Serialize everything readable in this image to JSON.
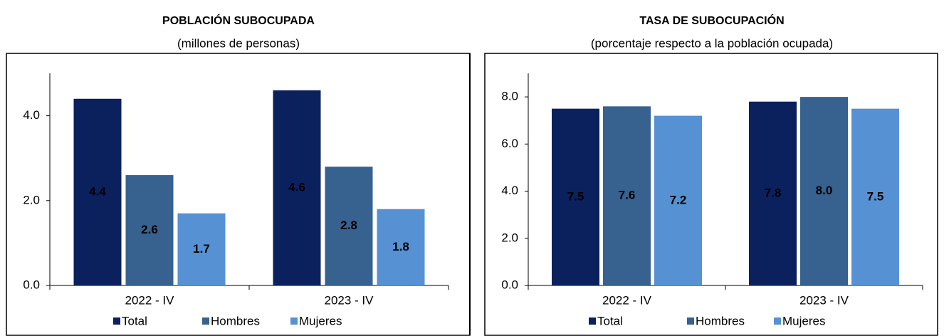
{
  "chart_data": [
    {
      "type": "bar",
      "title": "POBLACIÓN SUBOCUPADA",
      "subtitle": "(millones de personas)",
      "categories": [
        "2022 - IV",
        "2023 - IV"
      ],
      "series": [
        {
          "name": "Total",
          "color": "#0b215e",
          "values": [
            4.4,
            4.6
          ],
          "value_labels": [
            "4.4",
            "4.6"
          ]
        },
        {
          "name": "Hombres",
          "color": "#37618f",
          "values": [
            2.6,
            2.8
          ],
          "value_labels": [
            "2.6",
            "2.8"
          ]
        },
        {
          "name": "Mujeres",
          "color": "#5691d4",
          "values": [
            1.7,
            1.8
          ],
          "value_labels": [
            "1.7",
            "1.8"
          ]
        }
      ],
      "ylim": [
        0,
        5
      ],
      "yticks": [
        {
          "value": 0,
          "label": "0.0"
        },
        {
          "value": 2,
          "label": "2.0"
        },
        {
          "value": 4,
          "label": "4.0"
        }
      ],
      "legend": "bottom"
    },
    {
      "type": "bar",
      "title": "TASA DE SUBOCUPACIÓN",
      "subtitle": "(porcentaje respecto a la población ocupada)",
      "categories": [
        "2022 - IV",
        "2023 - IV"
      ],
      "series": [
        {
          "name": "Total",
          "color": "#0b215e",
          "values": [
            7.5,
            7.8
          ],
          "value_labels": [
            "7.5",
            "7.8"
          ]
        },
        {
          "name": "Hombres",
          "color": "#37618f",
          "values": [
            7.6,
            8.0
          ],
          "value_labels": [
            "7.6",
            "8.0"
          ]
        },
        {
          "name": "Mujeres",
          "color": "#5691d4",
          "values": [
            7.2,
            7.5
          ],
          "value_labels": [
            "7.2",
            "7.5"
          ]
        }
      ],
      "ylim": [
        0,
        9
      ],
      "yticks": [
        {
          "value": 0,
          "label": "0.0"
        },
        {
          "value": 2,
          "label": "2.0"
        },
        {
          "value": 4,
          "label": "4.0"
        },
        {
          "value": 6,
          "label": "6.0"
        },
        {
          "value": 8,
          "label": "8.0"
        }
      ],
      "legend": "bottom"
    }
  ]
}
